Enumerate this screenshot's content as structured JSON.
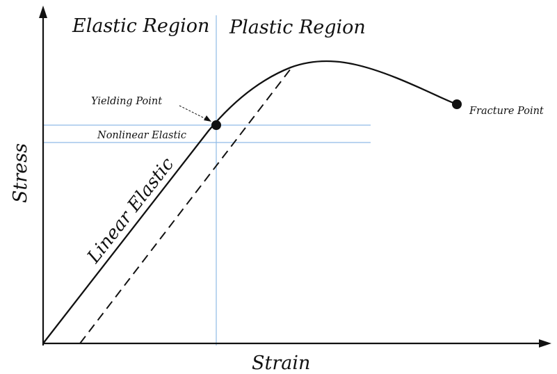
{
  "labels": {
    "elastic_region": "Elastic Region",
    "plastic_region": "Plastic Region",
    "yielding_point": "Yielding Point",
    "nonlinear_elastic": "Nonlinear Elastic",
    "linear_elastic": "Linear Elastic",
    "fracture_point": "Fracture Point",
    "x_axis": "Strain",
    "y_axis": "Stress"
  },
  "colors": {
    "curve": "#111111",
    "guide_lines": "#8fbbe6",
    "background": "#ffffff"
  },
  "icons": {
    "yield_marker": "filled-circle",
    "fracture_marker": "filled-circle",
    "axis_arrowheads": "triangle-arrow"
  }
}
